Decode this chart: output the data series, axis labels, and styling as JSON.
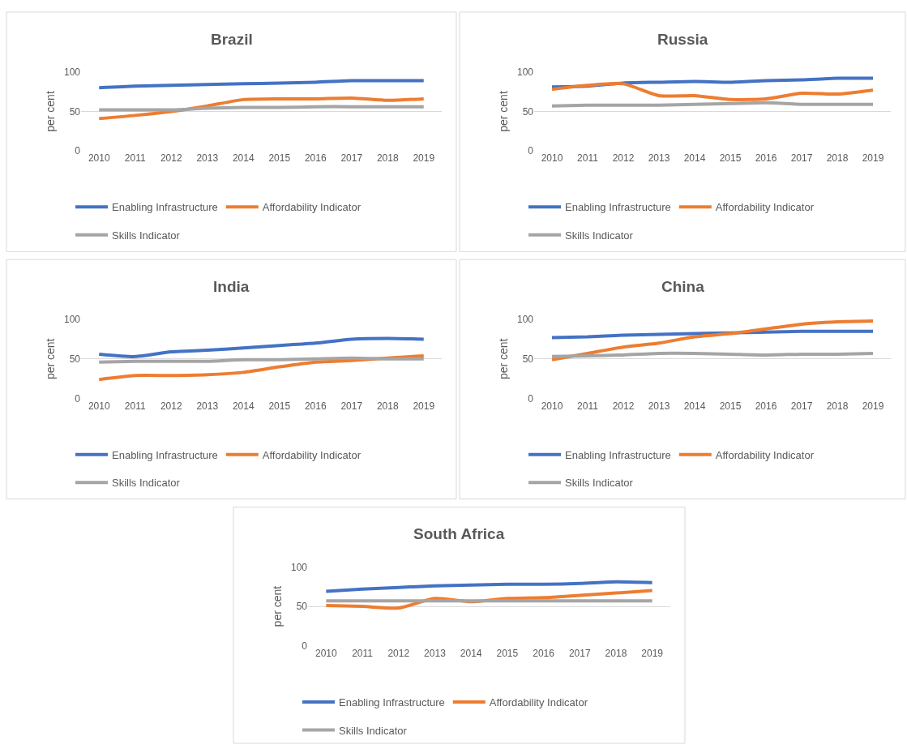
{
  "chart_data": [
    {
      "type": "line",
      "title": "Brazil",
      "ylabel": "per cent",
      "categories": [
        "2010",
        "2011",
        "2012",
        "2013",
        "2014",
        "2015",
        "2016",
        "2017",
        "2018",
        "2019"
      ],
      "ylim": [
        0,
        100
      ],
      "yticks": [
        0,
        50,
        100
      ],
      "grid": "y",
      "legend": "bottom",
      "marker": "none",
      "line_style": "solid",
      "series": [
        {
          "name": "Enabling Infrastructure",
          "color": "#4472c4",
          "values": [
            80,
            82,
            83,
            84,
            85,
            86,
            87,
            89,
            89,
            89
          ]
        },
        {
          "name": "Affordability Indicator",
          "color": "#ed7d31",
          "values": [
            41,
            45,
            50,
            57,
            65,
            66,
            66,
            67,
            64,
            66
          ]
        },
        {
          "name": "Skills Indicator",
          "color": "#a5a5a5",
          "values": [
            52,
            52,
            52,
            54,
            55,
            55,
            56,
            56,
            56,
            56
          ]
        }
      ]
    },
    {
      "type": "line",
      "title": "Russia",
      "ylabel": "per cent",
      "categories": [
        "2010",
        "2011",
        "2012",
        "2013",
        "2014",
        "2015",
        "2016",
        "2017",
        "2018",
        "2019"
      ],
      "ylim": [
        0,
        100
      ],
      "yticks": [
        0,
        50,
        100
      ],
      "grid": "y",
      "legend": "bottom",
      "marker": "none",
      "line_style": "solid",
      "series": [
        {
          "name": "Enabling Infrastructure",
          "color": "#4472c4",
          "values": [
            81,
            82,
            86,
            87,
            88,
            87,
            89,
            90,
            92,
            92
          ]
        },
        {
          "name": "Affordability Indicator",
          "color": "#ed7d31",
          "values": [
            78,
            83,
            85,
            70,
            70,
            65,
            66,
            73,
            72,
            77
          ]
        },
        {
          "name": "Skills Indicator",
          "color": "#a5a5a5",
          "values": [
            57,
            58,
            58,
            58,
            59,
            60,
            61,
            59,
            59,
            59
          ]
        }
      ]
    },
    {
      "type": "line",
      "title": "India",
      "ylabel": "per cent",
      "categories": [
        "2010",
        "2011",
        "2012",
        "2013",
        "2014",
        "2015",
        "2016",
        "2017",
        "2018",
        "2019"
      ],
      "ylim": [
        0,
        100
      ],
      "yticks": [
        0,
        50,
        100
      ],
      "grid": "y",
      "legend": "bottom",
      "marker": "none",
      "line_style": "solid",
      "series": [
        {
          "name": "Enabling Infrastructure",
          "color": "#4472c4",
          "values": [
            56,
            53,
            59,
            61,
            64,
            67,
            70,
            75,
            76,
            75
          ]
        },
        {
          "name": "Affordability Indicator",
          "color": "#ed7d31",
          "values": [
            24,
            29,
            29,
            30,
            33,
            40,
            46,
            48,
            51,
            54
          ]
        },
        {
          "name": "Skills Indicator",
          "color": "#a5a5a5",
          "values": [
            46,
            47,
            47,
            47,
            49,
            49,
            50,
            51,
            50,
            50
          ]
        }
      ]
    },
    {
      "type": "line",
      "title": "China",
      "ylabel": "per cent",
      "categories": [
        "2010",
        "2011",
        "2012",
        "2013",
        "2014",
        "2015",
        "2016",
        "2017",
        "2018",
        "2019"
      ],
      "ylim": [
        0,
        100
      ],
      "yticks": [
        0,
        50,
        100
      ],
      "grid": "y",
      "legend": "bottom",
      "marker": "none",
      "line_style": "solid",
      "series": [
        {
          "name": "Enabling Infrastructure",
          "color": "#4472c4",
          "values": [
            77,
            78,
            80,
            81,
            82,
            83,
            84,
            85,
            85,
            85
          ]
        },
        {
          "name": "Affordability Indicator",
          "color": "#ed7d31",
          "values": [
            49,
            57,
            65,
            70,
            78,
            82,
            88,
            94,
            97,
            98
          ]
        },
        {
          "name": "Skills Indicator",
          "color": "#a5a5a5",
          "values": [
            53,
            54,
            55,
            57,
            57,
            56,
            55,
            56,
            56,
            57
          ]
        }
      ]
    },
    {
      "type": "line",
      "title": "South Africa",
      "ylabel": "per cent",
      "categories": [
        "2010",
        "2011",
        "2012",
        "2013",
        "2014",
        "2015",
        "2016",
        "2017",
        "2018",
        "2019"
      ],
      "ylim": [
        0,
        100
      ],
      "yticks": [
        0,
        50,
        100
      ],
      "grid": "y",
      "legend": "bottom",
      "marker": "none",
      "line_style": "solid",
      "series": [
        {
          "name": "Enabling Infrastructure",
          "color": "#4472c4",
          "values": [
            69,
            72,
            74,
            76,
            77,
            78,
            78,
            79,
            81,
            80
          ]
        },
        {
          "name": "Affordability Indicator",
          "color": "#ed7d31",
          "values": [
            51,
            50,
            48,
            60,
            56,
            60,
            61,
            64,
            67,
            70
          ]
        },
        {
          "name": "Skills Indicator",
          "color": "#a5a5a5",
          "values": [
            57,
            57,
            57,
            57,
            57,
            57,
            57,
            57,
            57,
            57
          ]
        }
      ]
    }
  ]
}
